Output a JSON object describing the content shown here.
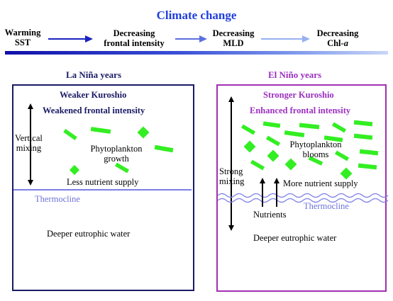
{
  "header": {
    "title": "Climate change",
    "title_color": "#1f3fdc",
    "stages": [
      {
        "line1": "Warming",
        "line2": "SST",
        "line2_italic": ""
      },
      {
        "line1": "Decreasing",
        "line2": "frontal intensity",
        "line2_italic": ""
      },
      {
        "line1": "Decreasing",
        "line2": "MLD",
        "line2_italic": ""
      },
      {
        "line1": "Decreasing",
        "line2": "Chl-",
        "line2_italic": "a"
      }
    ]
  },
  "left_panel": {
    "title": "La Niña years",
    "title_color": "#1a1a66",
    "kuroshio": "Weaker Kuroshio",
    "frontal": "Weakened frontal intensity",
    "mixing": [
      "Vertical",
      "mixing"
    ],
    "phytoplankton": [
      "Phytoplankton",
      "growth"
    ],
    "nutrient": "Less nutrient supply",
    "thermocline": "Thermocline",
    "deep_water": "Deeper eutrophic water"
  },
  "right_panel": {
    "title": "El Niño years",
    "title_color": "#9b2fbf",
    "kuroshio": "Stronger Kuroshio",
    "frontal": "Enhanced frontal intensity",
    "mixing": [
      "Strong",
      "mixing"
    ],
    "phytoplankton": [
      "Phytoplankton",
      "blooms"
    ],
    "nutrient": "More nutrient supply",
    "nutrients_label": "Nutrients",
    "thermocline": "Thermocline",
    "deep_water": "Deeper eutrophic water"
  },
  "colors": {
    "phytoplankton_fill": "#33ee22",
    "thermocline_line": "#7b7fe6",
    "thermocline_text": "#6d72d8"
  }
}
